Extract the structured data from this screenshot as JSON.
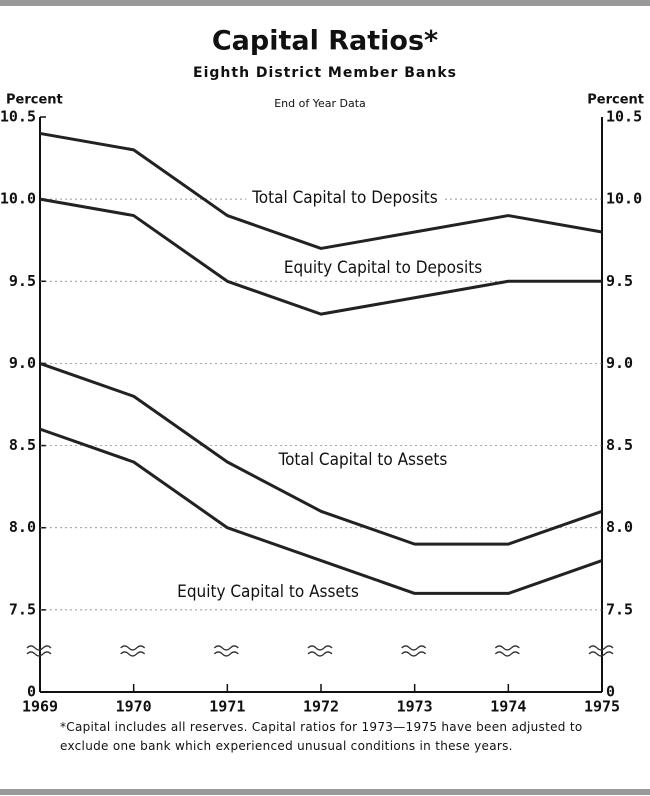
{
  "chart_data": {
    "type": "line",
    "title": "Capital Ratios*",
    "subtitle": "Eighth District Member Banks",
    "y_label": "Percent",
    "annotation": "End of Year Data",
    "footnote": "*Capital includes all reserves. Capital ratios for 1973—1975 have been adjusted to exclude one bank which experienced unusual conditions in these years.",
    "categories": [
      "1969",
      "1970",
      "1971",
      "1972",
      "1973",
      "1974",
      "1975"
    ],
    "series": [
      {
        "name": "Total Capital to Deposits",
        "color": "#222222",
        "values": [
          10.4,
          10.3,
          9.9,
          9.7,
          9.8,
          9.9,
          9.8
        ]
      },
      {
        "name": "Equity Capital to Deposits",
        "color": "#222222",
        "values": [
          10.0,
          9.9,
          9.5,
          9.3,
          9.4,
          9.5,
          9.5
        ]
      },
      {
        "name": "Total Capital to Assets",
        "color": "#222222",
        "values": [
          9.0,
          8.8,
          8.4,
          8.1,
          7.9,
          7.9,
          8.1
        ]
      },
      {
        "name": "Equity Capital to Assets",
        "color": "#222222",
        "values": [
          8.6,
          8.4,
          8.0,
          7.8,
          7.6,
          7.6,
          7.8
        ]
      }
    ],
    "ylim": [
      7.0,
      10.5
    ],
    "yticks": [
      0,
      {
        "value": 7.5,
        "label": "7.5"
      },
      {
        "value": 8.0,
        "label": "8.0"
      },
      {
        "value": 8.5,
        "label": "8.5"
      },
      {
        "value": 9.0,
        "label": "9.0"
      },
      {
        "value": 9.5,
        "label": "9.5"
      },
      {
        "value": 10.0,
        "label": "10.0"
      },
      {
        "value": 10.5,
        "label": "10.5"
      }
    ],
    "axis_break": true,
    "grid": true,
    "right_axis": true
  }
}
